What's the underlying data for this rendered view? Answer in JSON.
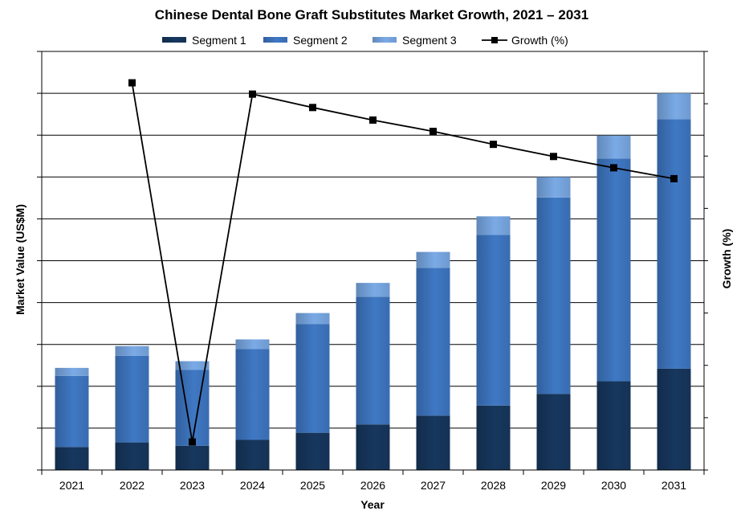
{
  "chart_data": {
    "type": "bar",
    "stacked": true,
    "title": "Chinese Dental Bone Graft Substitutes Market Growth, 2021 – 2031",
    "xlabel": "Year",
    "ylabel": "Market Value (US$M)",
    "y2label": "Growth (%)",
    "categories": [
      "2021",
      "2022",
      "2023",
      "2024",
      "2025",
      "2026",
      "2027",
      "2028",
      "2029",
      "2030",
      "2031"
    ],
    "ylim": [
      0,
      100
    ],
    "y2lim": [
      0,
      100
    ],
    "y_tick_labels_shown": false,
    "y2_tick_labels_shown": false,
    "grid": "horizontal",
    "legend_position": "top",
    "series": [
      {
        "name": "Segment 1",
        "kind": "bar",
        "color": "#17375e",
        "values": [
          5.5,
          6.6,
          5.8,
          7.2,
          8.9,
          10.9,
          13.0,
          15.4,
          18.2,
          21.2,
          24.2
        ]
      },
      {
        "name": "Segment 2",
        "kind": "bar",
        "color": "#3f78c4",
        "values": [
          17.0,
          20.7,
          18.1,
          21.7,
          26.0,
          30.5,
          35.3,
          40.8,
          46.9,
          53.2,
          59.6
        ]
      },
      {
        "name": "Segment 3",
        "kind": "bar",
        "color": "#7aaae6",
        "values": [
          1.9,
          2.3,
          2.1,
          2.3,
          2.6,
          3.3,
          3.8,
          4.4,
          4.9,
          5.5,
          6.2
        ]
      },
      {
        "name": "Growth (%)",
        "kind": "line",
        "axis": "right",
        "color": "#000000",
        "marker": "square",
        "values": [
          null,
          92.5,
          6.7,
          89.8,
          86.6,
          83.6,
          80.9,
          77.8,
          74.9,
          72.2,
          69.6
        ]
      }
    ]
  }
}
